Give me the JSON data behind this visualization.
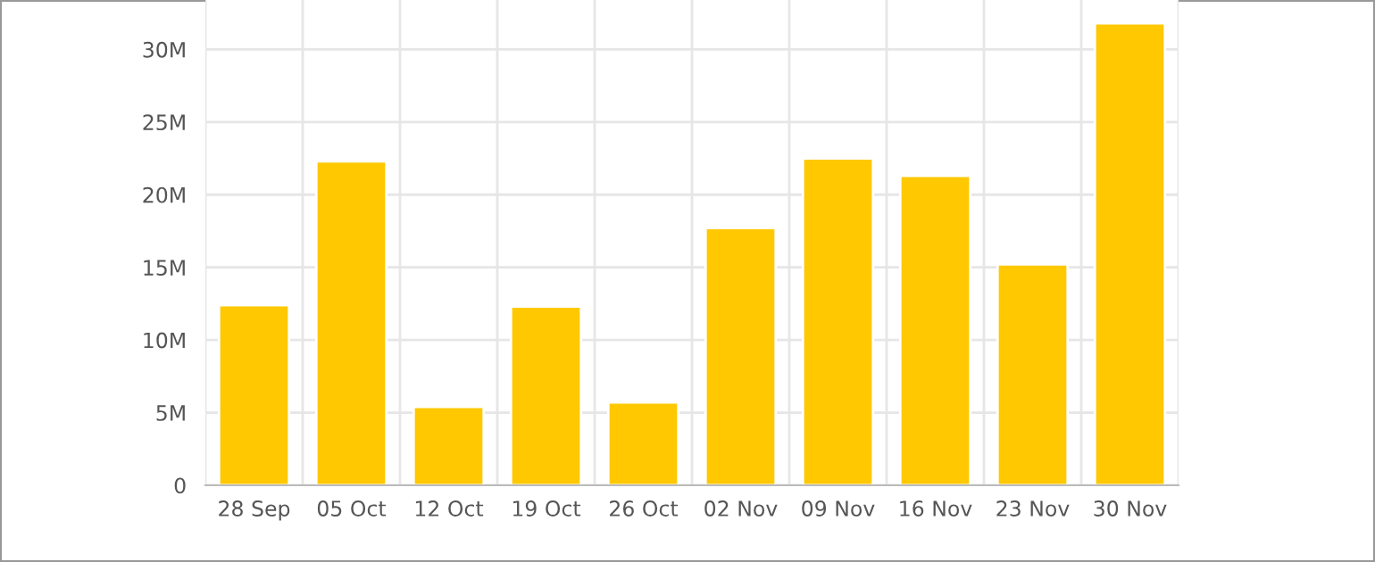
{
  "chart_data": {
    "type": "bar",
    "categories": [
      "28 Sep",
      "05 Oct",
      "12 Oct",
      "19 Oct",
      "26 Oct",
      "02 Nov",
      "09 Nov",
      "16 Nov",
      "23 Nov",
      "30 Nov"
    ],
    "values": [
      12400000,
      22300000,
      5400000,
      12300000,
      5700000,
      17700000,
      22500000,
      21300000,
      15200000,
      31800000
    ],
    "color": "#ffc800",
    "ylim": [
      0,
      33400000
    ],
    "yticks": [
      {
        "value": 0,
        "label": "0"
      },
      {
        "value": 5000000,
        "label": "5M"
      },
      {
        "value": 10000000,
        "label": "10M"
      },
      {
        "value": 15000000,
        "label": "15M"
      },
      {
        "value": 20000000,
        "label": "20M"
      },
      {
        "value": 25000000,
        "label": "25M"
      },
      {
        "value": 30000000,
        "label": "30M"
      }
    ],
    "grid": true
  }
}
